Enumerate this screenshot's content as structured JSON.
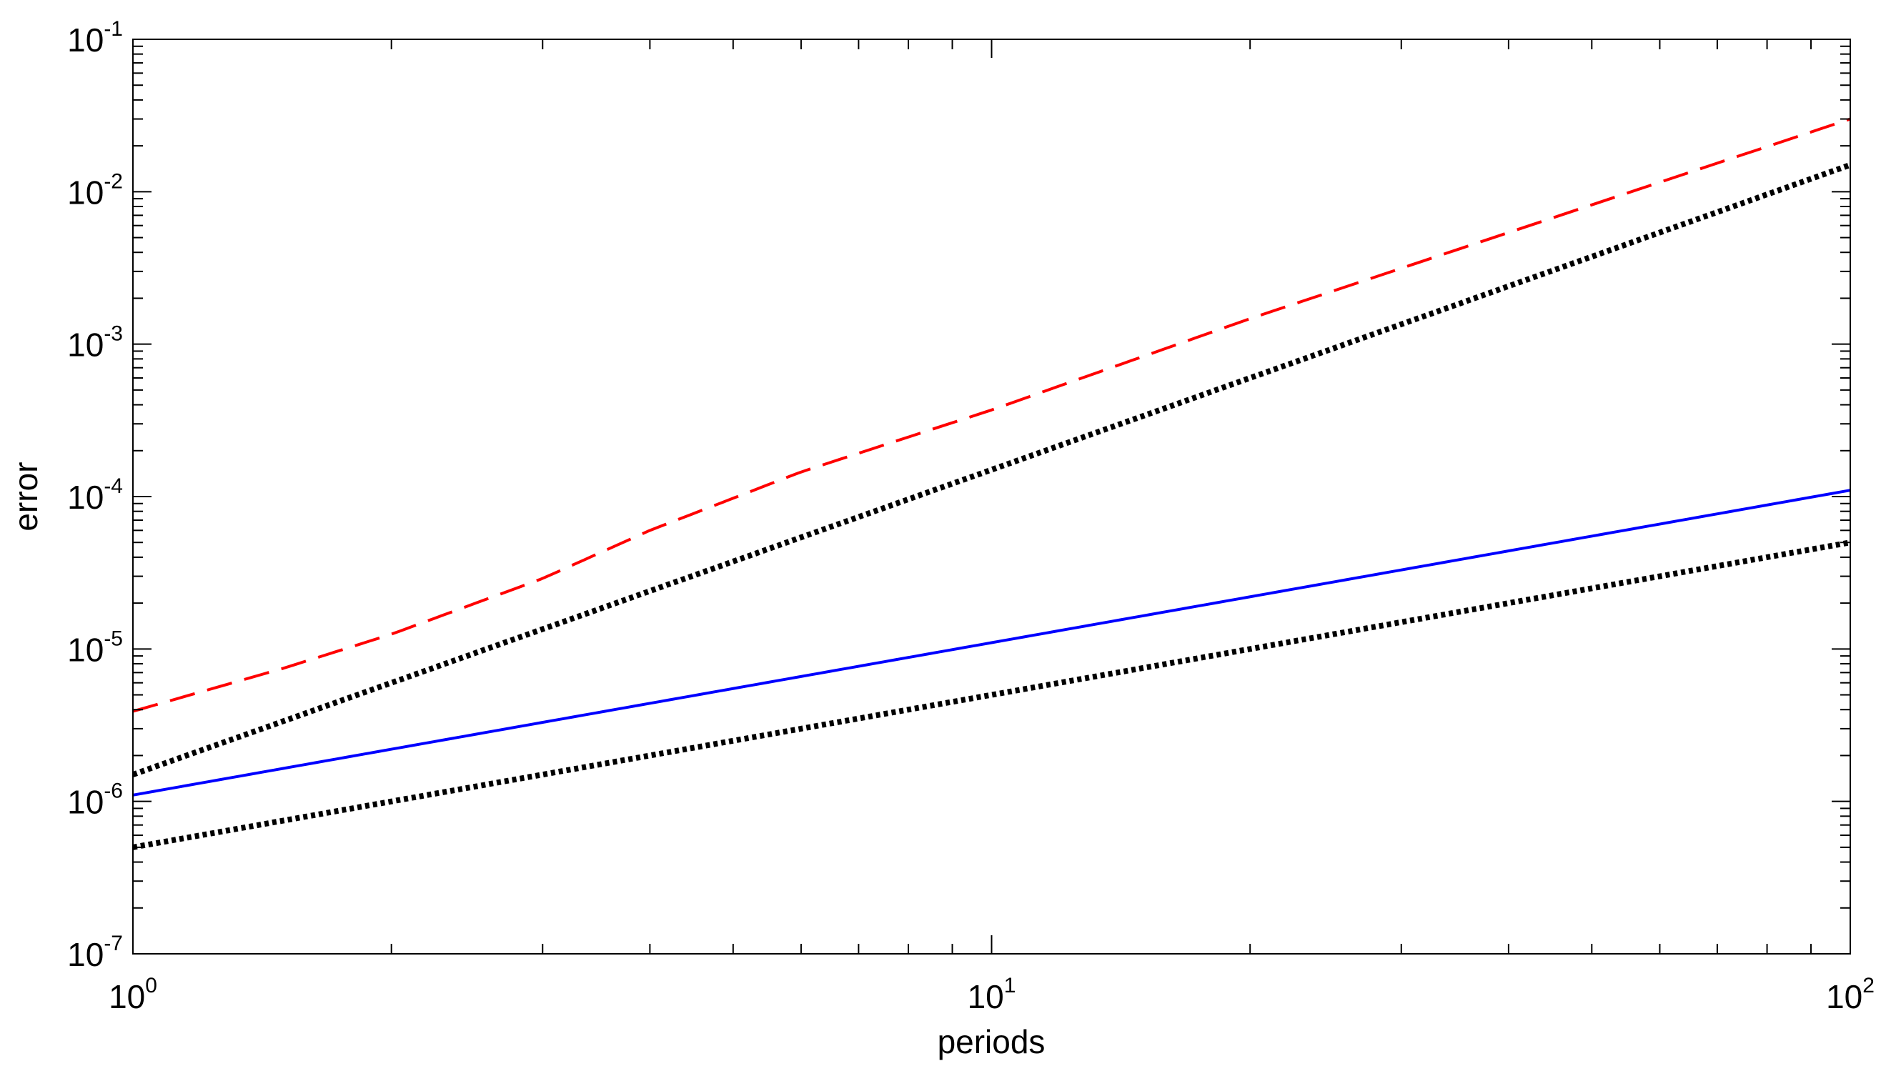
{
  "chart_data": {
    "type": "line",
    "title": "",
    "xlabel": "periods",
    "ylabel": "error",
    "xscale": "log",
    "yscale": "log",
    "xlim": [
      1,
      100
    ],
    "ylim": [
      1e-07,
      0.1
    ],
    "grid": false,
    "legend": "none",
    "x_ticks": [
      {
        "base": "10",
        "exp": "0",
        "value": 1
      },
      {
        "base": "10",
        "exp": "1",
        "value": 10
      },
      {
        "base": "10",
        "exp": "2",
        "value": 100
      }
    ],
    "y_ticks": [
      {
        "base": "10",
        "exp": "-7",
        "value": 1e-07
      },
      {
        "base": "10",
        "exp": "-6",
        "value": 1e-06
      },
      {
        "base": "10",
        "exp": "-5",
        "value": 1e-05
      },
      {
        "base": "10",
        "exp": "-4",
        "value": 0.0001
      },
      {
        "base": "10",
        "exp": "-3",
        "value": 0.001
      },
      {
        "base": "10",
        "exp": "-2",
        "value": 0.01
      },
      {
        "base": "10",
        "exp": "-1",
        "value": 0.1
      }
    ],
    "series": [
      {
        "color": "#ff0000",
        "style": "dashed",
        "x": [
          1,
          1.5,
          2,
          3,
          4,
          6,
          10,
          20,
          50,
          100
        ],
        "y": [
          3.9e-06,
          7.5e-06,
          1.25e-05,
          2.9e-05,
          6e-05,
          0.000145,
          0.00037,
          0.00147,
          0.0082,
          0.03
        ]
      },
      {
        "color": "#000000",
        "style": "dotted",
        "x": [
          1,
          100
        ],
        "y": [
          1.5e-06,
          0.015
        ]
      },
      {
        "color": "#0000ff",
        "style": "solid",
        "x": [
          1,
          100
        ],
        "y": [
          1.1e-06,
          0.00011
        ]
      },
      {
        "color": "#000000",
        "style": "dotted",
        "x": [
          1,
          100
        ],
        "y": [
          5e-07,
          5e-05
        ]
      }
    ]
  }
}
